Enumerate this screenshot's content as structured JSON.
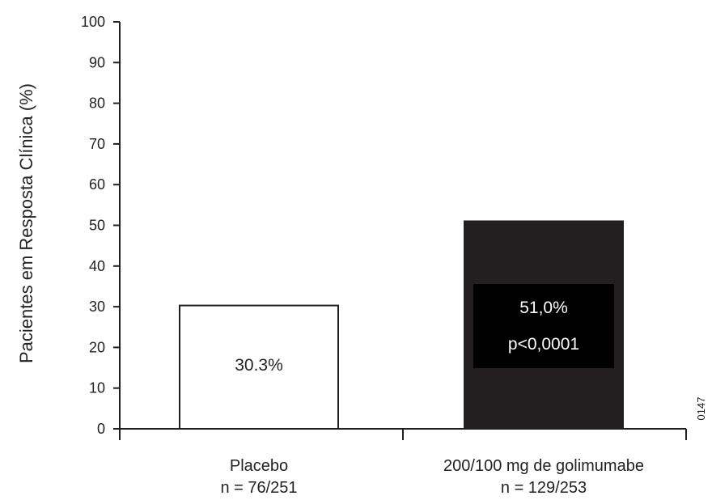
{
  "chart_data": {
    "type": "bar",
    "categories": [
      {
        "line1": "Placebo",
        "line2": "n = 76/251"
      },
      {
        "line1": "200/100 mg de golimumabe",
        "line2": "n = 129/253"
      }
    ],
    "values": [
      30.3,
      51.0
    ],
    "data_labels": [
      {
        "line1": "30.3%",
        "line2": ""
      },
      {
        "line1": "51,0%",
        "line2": "p<0,0001"
      }
    ],
    "bar_fill": [
      "#ffffff",
      "#231f20"
    ],
    "bar_stroke": "#231f20",
    "label_box_color": "#000000",
    "ylabel": "Pacientes em Resposta Clínica (%)",
    "ylim": [
      0,
      100
    ],
    "yticks": [
      "0",
      "10",
      "20",
      "30",
      "40",
      "50",
      "60",
      "70",
      "80",
      "90",
      "100"
    ],
    "grid": false,
    "legend": "none",
    "figure_code": "0147"
  }
}
